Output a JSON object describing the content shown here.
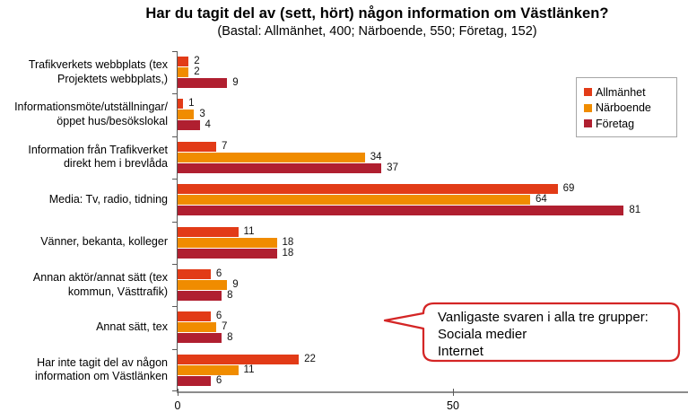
{
  "header": {
    "title": "Har du tagit del av (sett, hört) någon information om Västlänken?",
    "subtitle": "(Bastal: Allmänhet, 400; Närboende, 550; Företag, 152)"
  },
  "chart_data": {
    "type": "bar",
    "orientation": "horizontal",
    "title": "Har du tagit del av (sett, hört) någon information om Västlänken?",
    "subtitle": "(Bastal: Allmänhet, 400; Närboende, 550; Företag, 152)",
    "categories": [
      "Trafikverkets webbplats (tex\nProjektets webbplats,)",
      "Informationsmöte/utställningar/\nöppet hus/besökslokal",
      "Information från Trafikverket\ndirekt hem i brevlåda",
      "Media: Tv, radio, tidning",
      "Vänner, bekanta, kolleger",
      "Annan aktör/annat sätt (tex\nkommun, Västtrafik)",
      "Annat sätt, tex",
      "Har inte tagit del av någon\ninformation om Västlänken"
    ],
    "series": [
      {
        "name": "Allmänhet",
        "color": "#e23b17",
        "values": [
          2,
          1,
          7,
          69,
          11,
          6,
          6,
          22
        ]
      },
      {
        "name": "Närboende",
        "color": "#f08c00",
        "values": [
          2,
          3,
          34,
          64,
          18,
          9,
          7,
          11
        ]
      },
      {
        "name": "Företag",
        "color": "#b01f30",
        "values": [
          9,
          4,
          37,
          81,
          18,
          8,
          8,
          6
        ]
      }
    ],
    "value_labels": true,
    "xlim": [
      0,
      93
    ],
    "xticks": [
      0,
      50
    ],
    "grid": false,
    "legend_position": "right",
    "axis_color": "#595959",
    "baseline_color": "#8c8c8c"
  },
  "callout": {
    "text": "Vanligaste svaren i alla tre grupper:\nSociala medier\nInternet",
    "border_color": "#d42525"
  }
}
